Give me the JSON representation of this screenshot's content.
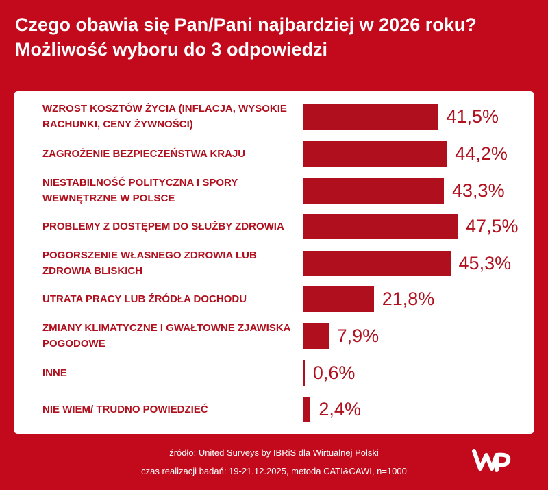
{
  "title": {
    "line1": "Czego obawia się Pan/Pani najbardziej w 2026 roku?",
    "line2": "Możliwość wyboru do 3 odpowiedzi"
  },
  "chart_data": {
    "type": "bar",
    "orientation": "horizontal",
    "categories": [
      "WZROST KOSZTÓW ŻYCIA (INFLACJA, WYSOKIE RACHUNKI, CENY ŻYWNOŚCI)",
      "ZAGROŻENIE BEZPIECZEŃSTWA KRAJU",
      "NIESTABILNOŚĆ POLITYCZNA I SPORY WEWNĘTRZNE W POLSCE",
      "PROBLEMY Z DOSTĘPEM DO SŁUŻBY ZDROWIA",
      "POGORSZENIE WŁASNEGO ZDROWIA LUB ZDROWIA BLISKICH",
      "UTRATA PRACY LUB ŹRÓDŁA DOCHODU",
      "ZMIANY KLIMATYCZNE I GWAŁTOWNE ZJAWISKA POGODOWE",
      "INNE",
      "NIE WIEM/ TRUDNO POWIEDZIEĆ"
    ],
    "values": [
      41.5,
      44.2,
      43.3,
      47.5,
      45.3,
      21.8,
      7.9,
      0.6,
      2.4
    ],
    "value_labels": [
      "41,5%",
      "44,2%",
      "43,3%",
      "47,5%",
      "45,3%",
      "21,8%",
      "7,9%",
      "0,6%",
      "2,4%"
    ],
    "bar_color": "#b0101e",
    "grid": false,
    "legend": "none"
  },
  "footer": {
    "source": "źródło: United Surveys by IBRiS dla Wirtualnej Polski",
    "method": "czas realizacji badań: 19-21.12.2025, metoda CATI&CAWI, n=1000"
  },
  "logo": {
    "name": "wp-logo-icon"
  },
  "colors": {
    "background": "#c20a1c",
    "panel": "#ffffff",
    "accent": "#b0101e"
  }
}
